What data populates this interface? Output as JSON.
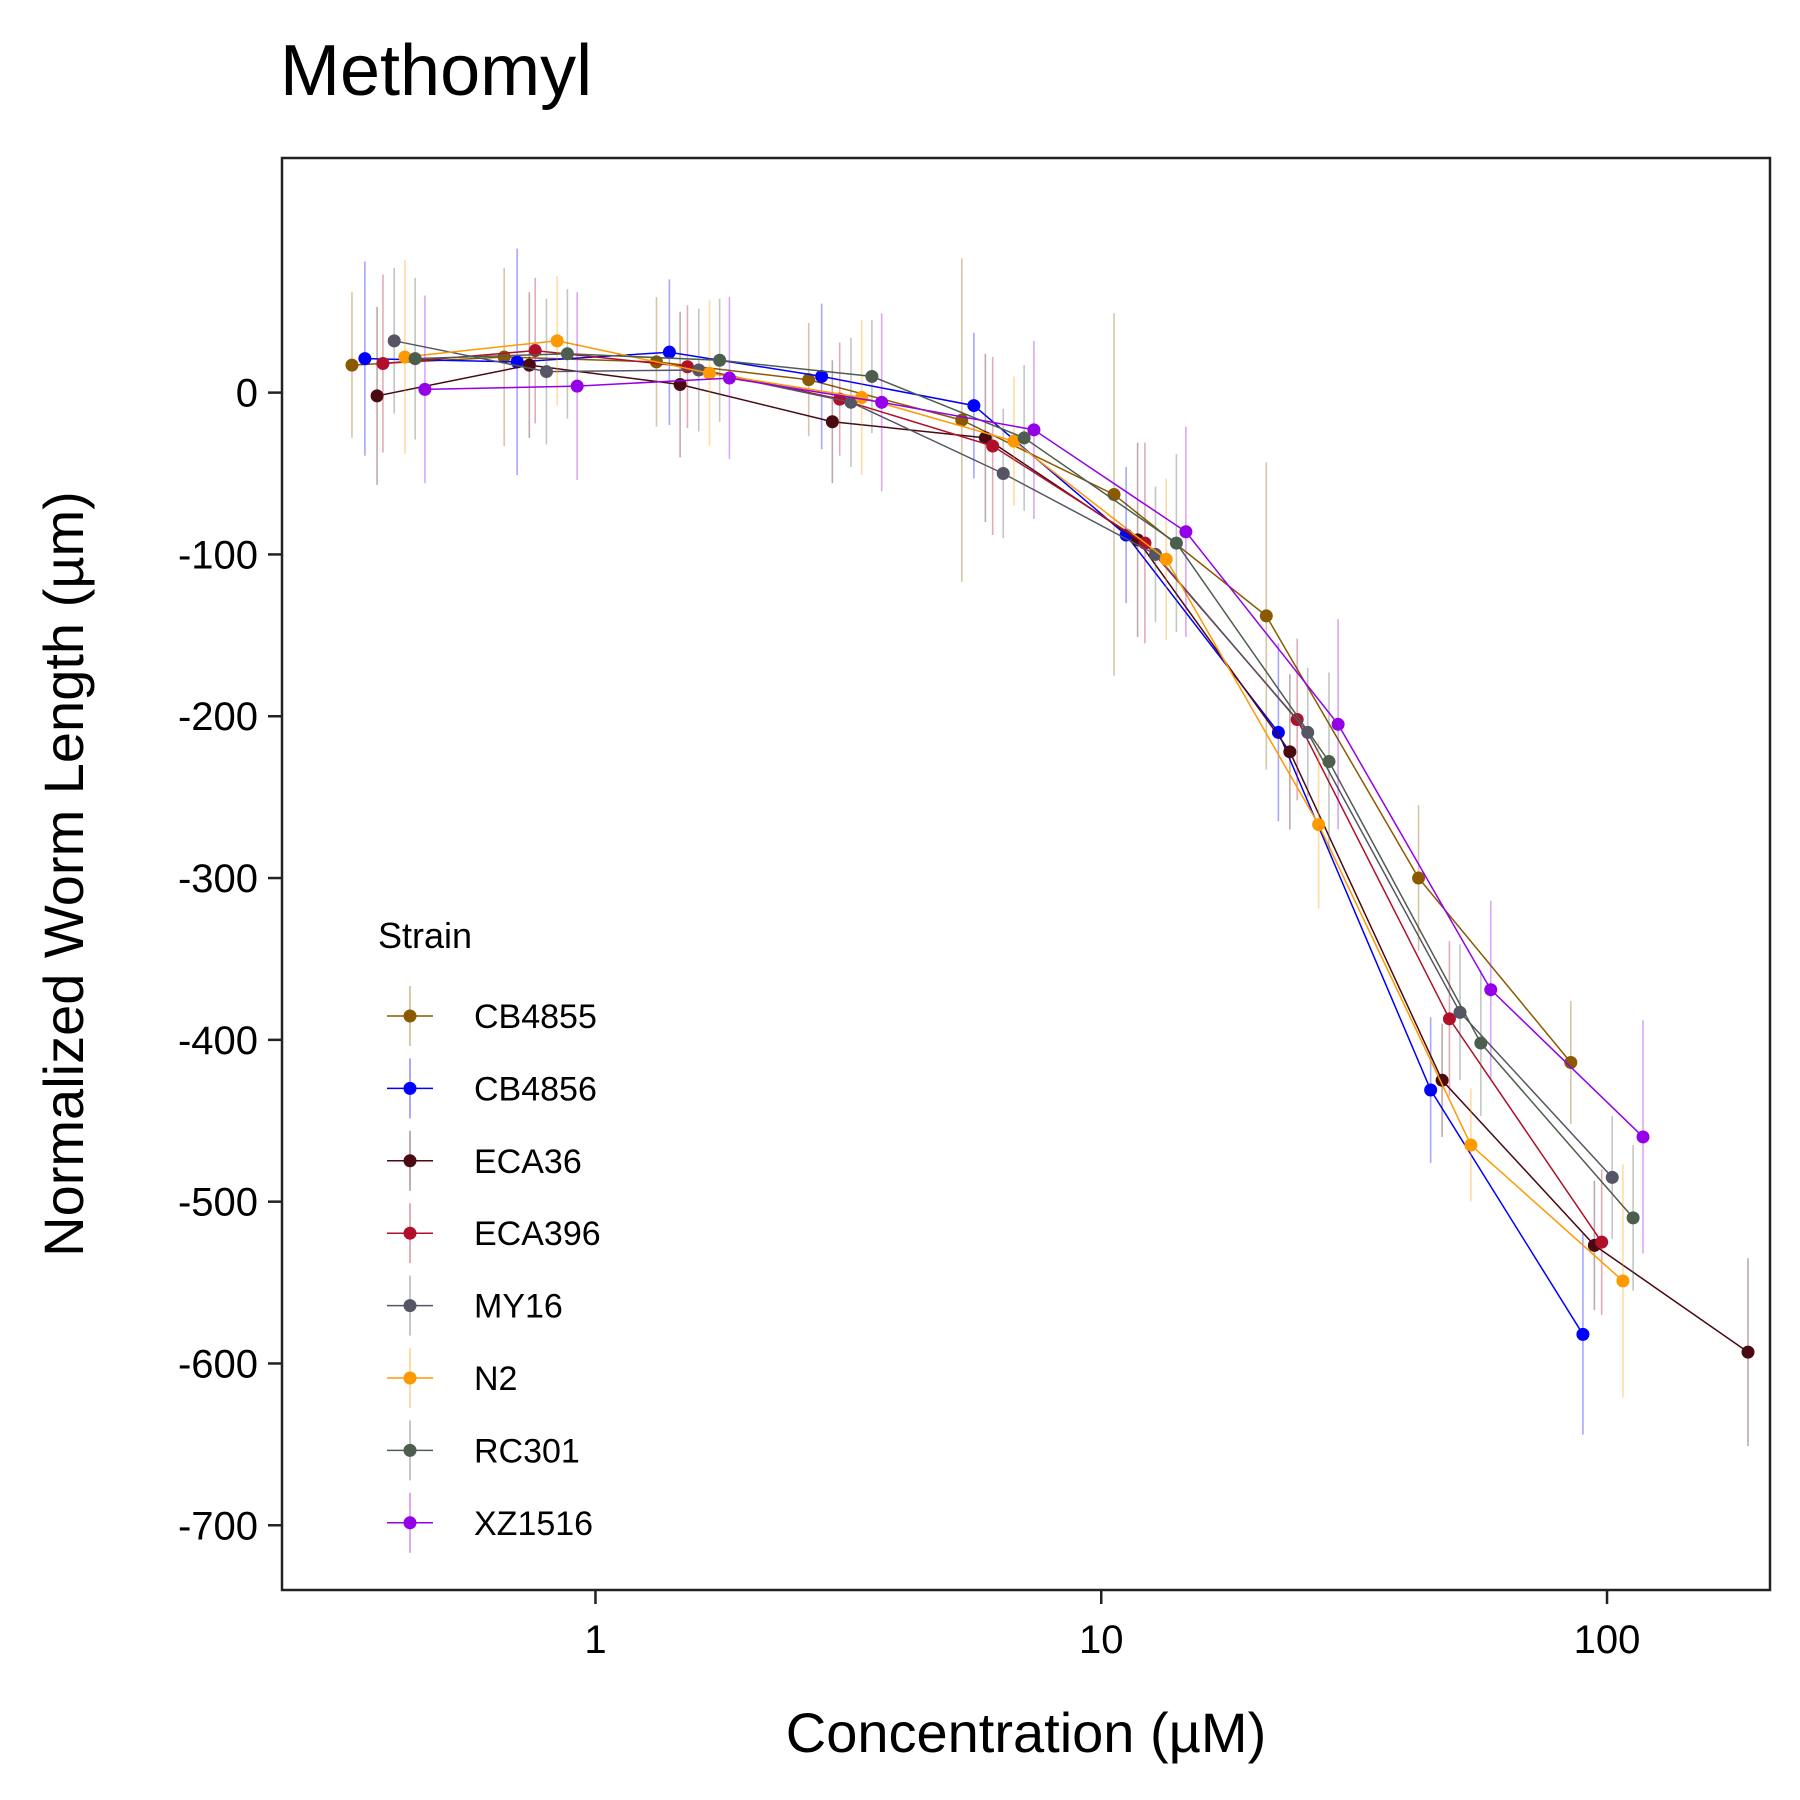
{
  "chart_data": {
    "type": "line",
    "title": "Methomyl",
    "xlabel": "Concentration (µM)",
    "ylabel": "Normalized Worm Length (µm)",
    "x_scale": "log10",
    "xlim": [
      0.24,
      210
    ],
    "ylim": [
      -740,
      145
    ],
    "x_ticks": [
      1,
      10,
      100
    ],
    "x_tick_labels": [
      "1",
      "10",
      "100"
    ],
    "y_ticks": [
      0,
      -100,
      -200,
      -300,
      -400,
      -500,
      -600,
      -700
    ],
    "y_tick_labels": [
      "0",
      "-100",
      "-200",
      "-300",
      "-400",
      "-500",
      "-600",
      "-700"
    ],
    "grid": false,
    "legend": {
      "title": "Strain",
      "position": "bottom-left inside"
    },
    "series": [
      {
        "name": "CB4855",
        "color": "#8B5A00",
        "x": [
          0.33,
          0.66,
          1.32,
          2.64,
          5.3,
          10.6,
          21.2,
          42.4,
          84.8
        ],
        "y": [
          17,
          22,
          19,
          8,
          -17,
          -63,
          -138,
          -300,
          -414
        ],
        "err": [
          45,
          55,
          40,
          35,
          100,
          112,
          95,
          45,
          38
        ]
      },
      {
        "name": "CB4856",
        "color": "#0000FF",
        "x": [
          0.35,
          0.7,
          1.4,
          2.8,
          5.6,
          11.2,
          22.4,
          44.8,
          89.6
        ],
        "y": [
          21,
          19,
          25,
          10,
          -8,
          -88,
          -210,
          -431,
          -582
        ],
        "err": [
          60,
          70,
          45,
          45,
          45,
          42,
          55,
          45,
          62
        ]
      },
      {
        "name": "ECA36",
        "color": "#4A0A12",
        "x": [
          0.37,
          0.74,
          1.47,
          2.94,
          5.9,
          11.8,
          23.6,
          47.2,
          94.4,
          190
        ],
        "y": [
          -2,
          17,
          5,
          -18,
          -28,
          -91,
          -222,
          -425,
          -527,
          -593
        ],
        "err": [
          55,
          45,
          45,
          38,
          52,
          60,
          48,
          35,
          40,
          58
        ]
      },
      {
        "name": "ECA396",
        "color": "#B0102A",
        "x": [
          0.38,
          0.76,
          1.52,
          3.04,
          6.1,
          12.2,
          24.4,
          48.8,
          97.6
        ],
        "y": [
          18,
          26,
          16,
          -4,
          -33,
          -93,
          -202,
          -387,
          -525
        ],
        "err": [
          55,
          45,
          38,
          35,
          55,
          62,
          50,
          48,
          45
        ]
      },
      {
        "name": "MY16",
        "color": "#555566",
        "x": [
          0.4,
          0.8,
          1.6,
          3.2,
          6.4,
          12.8,
          25.6,
          51.2,
          102.4
        ],
        "y": [
          32,
          13,
          14,
          -6,
          -50,
          -100,
          -210,
          -383,
          -485
        ],
        "err": [
          45,
          45,
          38,
          40,
          40,
          42,
          40,
          42,
          38
        ]
      },
      {
        "name": "N2",
        "color": "#FF9900",
        "x": [
          0.42,
          0.84,
          1.68,
          3.36,
          6.72,
          13.44,
          26.9,
          53.8,
          107.5
        ],
        "y": [
          22,
          32,
          12,
          -3,
          -30,
          -103,
          -267,
          -465,
          -549
        ],
        "err": [
          60,
          40,
          45,
          48,
          40,
          50,
          52,
          35,
          72
        ]
      },
      {
        "name": "RC301",
        "color": "#4E5E4E",
        "x": [
          0.44,
          0.88,
          1.76,
          3.52,
          7.04,
          14.08,
          28.2,
          56.3,
          112.6
        ],
        "y": [
          21,
          24,
          20,
          10,
          -28,
          -93,
          -228,
          -402,
          -510
        ],
        "err": [
          50,
          40,
          38,
          35,
          45,
          55,
          55,
          45,
          45
        ]
      },
      {
        "name": "XZ1516",
        "color": "#9400E8",
        "x": [
          0.46,
          0.92,
          1.84,
          3.68,
          7.36,
          14.7,
          29.4,
          58.9,
          117.8
        ],
        "y": [
          2,
          4,
          9,
          -6,
          -23,
          -86,
          -205,
          -369,
          -460
        ],
        "err": [
          58,
          58,
          50,
          55,
          55,
          65,
          65,
          55,
          72
        ]
      }
    ]
  }
}
